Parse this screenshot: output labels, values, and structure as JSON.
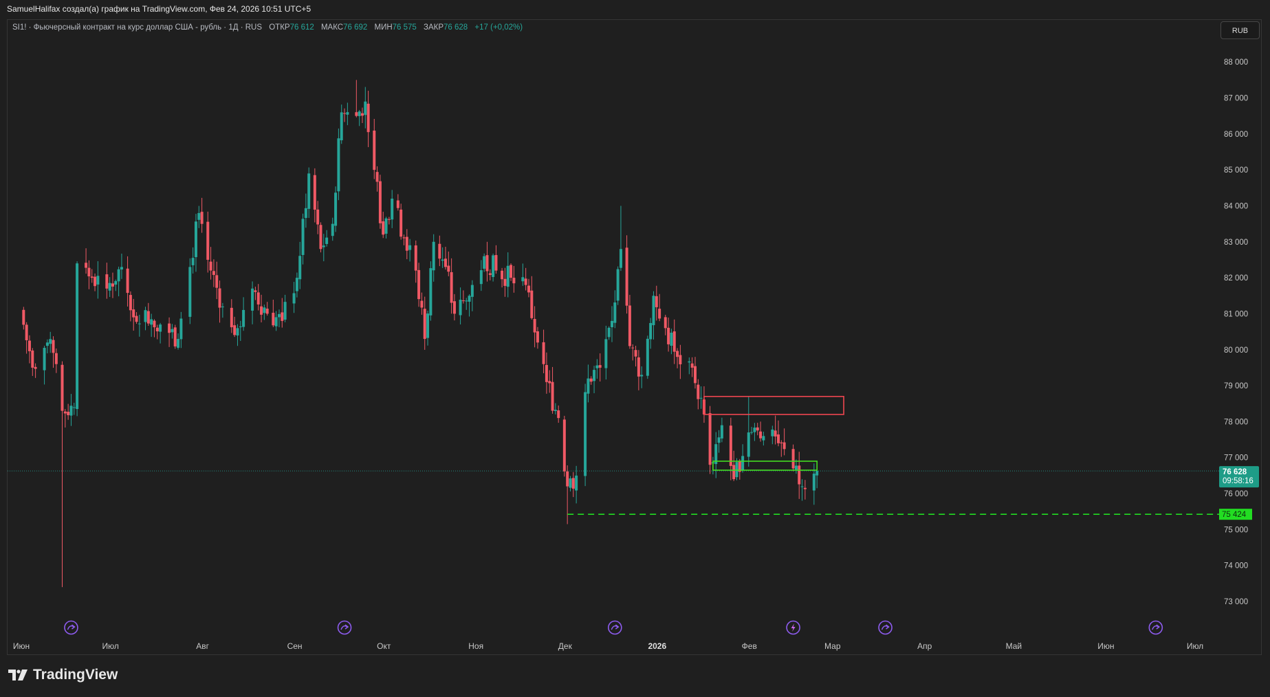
{
  "header": {
    "attribution": "SamuelHalifax создал(а) график на TradingView.com, Фев 24, 2026 10:51 UTC+5"
  },
  "legend": {
    "title": "SI1! · Фьючерсный контракт на курс доллар США - рубль · 1Д · RUS",
    "open_label": "ОТКР",
    "open_value": "76 612",
    "high_label": "МАКС",
    "high_value": "76 692",
    "low_label": "МИН",
    "low_value": "76 575",
    "close_label": "ЗАКР",
    "close_value": "76 628",
    "change": "+17 (+0,02%)"
  },
  "currency_button": "RUB",
  "price_badge": {
    "price": "76 628",
    "countdown": "09:58:16"
  },
  "level_badge": "75 424",
  "brand": "TradingView",
  "colors": {
    "up": "#26a69a",
    "down": "#f05965",
    "background": "#1f1f1f",
    "level_line": "#22dd22",
    "resistance_zone": "#f04650",
    "support_zone": "#44dd22",
    "event_marker": "#8e5cf0"
  },
  "chart_data": {
    "type": "candlestick",
    "y_range": [
      72400,
      88500
    ],
    "y_ticks": [
      "73 000",
      "74 000",
      "75 000",
      "76 000",
      "77 000",
      "78 000",
      "79 000",
      "80 000",
      "81 000",
      "82 000",
      "83 000",
      "84 000",
      "85 000",
      "86 000",
      "87 000",
      "88 000"
    ],
    "y_tick_values": [
      73000,
      74000,
      75000,
      76000,
      77000,
      78000,
      79000,
      80000,
      81000,
      82000,
      83000,
      84000,
      85000,
      86000,
      87000,
      88000
    ],
    "x_ticks": [
      {
        "label": "Июн",
        "date": "2025-06-01"
      },
      {
        "label": "Июл",
        "date": "2025-07-01"
      },
      {
        "label": "Авг",
        "date": "2025-08-01"
      },
      {
        "label": "Сен",
        "date": "2025-09-01"
      },
      {
        "label": "Окт",
        "date": "2025-10-01"
      },
      {
        "label": "Ноя",
        "date": "2025-11-01"
      },
      {
        "label": "Дек",
        "date": "2025-12-01"
      },
      {
        "label": "2026",
        "date": "2026-01-01"
      },
      {
        "label": "Фев",
        "date": "2026-02-01"
      },
      {
        "label": "Мар",
        "date": "2026-03-01"
      },
      {
        "label": "Апр",
        "date": "2026-04-01"
      },
      {
        "label": "Май",
        "date": "2026-05-01"
      },
      {
        "label": "Июн",
        "date": "2026-06-01"
      },
      {
        "label": "Июл",
        "date": "2026-07-01"
      }
    ],
    "bold_ticks": [
      "2026"
    ],
    "last_price": 76628,
    "horizontal_level": {
      "price": 75424,
      "from_date": "2025-12-02"
    },
    "zones": [
      {
        "kind": "resistance",
        "from_date": "2026-01-17",
        "to_date": "2026-03-05",
        "low": 78200,
        "high": 78700
      },
      {
        "kind": "support",
        "from_date": "2026-01-20",
        "to_date": "2026-02-24",
        "low": 76650,
        "high": 76900
      }
    ],
    "event_markers": [
      {
        "date": "2025-06-18",
        "kind": "split"
      },
      {
        "date": "2025-09-18",
        "kind": "split"
      },
      {
        "date": "2025-12-18",
        "kind": "split"
      },
      {
        "date": "2026-02-16",
        "kind": "flash"
      },
      {
        "date": "2026-03-19",
        "kind": "split"
      },
      {
        "date": "2026-06-18",
        "kind": "split"
      }
    ],
    "closes": [
      {
        "date": "2025-06-01",
        "close": 81100
      },
      {
        "date": "2025-06-05",
        "close": 79500
      },
      {
        "date": "2025-06-10",
        "close": 80200
      },
      {
        "date": "2025-06-13",
        "close": 79600
      },
      {
        "date": "2025-06-15",
        "close": 78300
      },
      {
        "date": "2025-06-19",
        "close": 78400
      },
      {
        "date": "2025-06-20",
        "close": 82400
      },
      {
        "date": "2025-06-25",
        "close": 82000
      },
      {
        "date": "2025-06-30",
        "close": 81700
      },
      {
        "date": "2025-07-05",
        "close": 82300
      },
      {
        "date": "2025-07-09",
        "close": 80900
      },
      {
        "date": "2025-07-13",
        "close": 81100
      },
      {
        "date": "2025-07-18",
        "close": 80700
      },
      {
        "date": "2025-07-24",
        "close": 80300
      },
      {
        "date": "2025-07-28",
        "close": 82300
      },
      {
        "date": "2025-07-31",
        "close": 83800
      },
      {
        "date": "2025-08-03",
        "close": 82500
      },
      {
        "date": "2025-08-08",
        "close": 81200
      },
      {
        "date": "2025-08-13",
        "close": 80600
      },
      {
        "date": "2025-08-18",
        "close": 81700
      },
      {
        "date": "2025-08-23",
        "close": 81000
      },
      {
        "date": "2025-08-28",
        "close": 80800
      },
      {
        "date": "2025-09-02",
        "close": 82000
      },
      {
        "date": "2025-09-06",
        "close": 84900
      },
      {
        "date": "2025-09-10",
        "close": 82800
      },
      {
        "date": "2025-09-14",
        "close": 83500
      },
      {
        "date": "2025-09-17",
        "close": 86600
      },
      {
        "date": "2025-09-22",
        "close": 86500
      },
      {
        "date": "2025-09-25",
        "close": 86900
      },
      {
        "date": "2025-09-28",
        "close": 85000
      },
      {
        "date": "2025-10-01",
        "close": 83200
      },
      {
        "date": "2025-10-04",
        "close": 84200
      },
      {
        "date": "2025-10-08",
        "close": 83100
      },
      {
        "date": "2025-10-12",
        "close": 82200
      },
      {
        "date": "2025-10-15",
        "close": 80300
      },
      {
        "date": "2025-10-18",
        "close": 83000
      },
      {
        "date": "2025-10-22",
        "close": 82300
      },
      {
        "date": "2025-10-25",
        "close": 81000
      },
      {
        "date": "2025-10-30",
        "close": 81500
      },
      {
        "date": "2025-11-04",
        "close": 82600
      },
      {
        "date": "2025-11-08",
        "close": 82200
      },
      {
        "date": "2025-11-13",
        "close": 82000
      },
      {
        "date": "2025-11-18",
        "close": 81800
      },
      {
        "date": "2025-11-22",
        "close": 80200
      },
      {
        "date": "2025-11-25",
        "close": 79100
      },
      {
        "date": "2025-11-29",
        "close": 78100
      },
      {
        "date": "2025-12-02",
        "close": 76200
      },
      {
        "date": "2025-12-05",
        "close": 76500
      },
      {
        "date": "2025-12-09",
        "close": 79200
      },
      {
        "date": "2025-12-13",
        "close": 79500
      },
      {
        "date": "2025-12-17",
        "close": 80800
      },
      {
        "date": "2025-12-20",
        "close": 82800
      },
      {
        "date": "2025-12-23",
        "close": 80100
      },
      {
        "date": "2025-12-27",
        "close": 79300
      },
      {
        "date": "2025-12-31",
        "close": 81500
      },
      {
        "date": "2026-01-04",
        "close": 80600
      },
      {
        "date": "2026-01-08",
        "close": 79800
      },
      {
        "date": "2026-01-13",
        "close": 79500
      },
      {
        "date": "2026-01-17",
        "close": 78200
      },
      {
        "date": "2026-01-19",
        "close": 76800
      },
      {
        "date": "2026-01-23",
        "close": 77900
      },
      {
        "date": "2026-01-27",
        "close": 76400
      },
      {
        "date": "2026-02-01",
        "close": 77700
      },
      {
        "date": "2026-02-06",
        "close": 77600
      },
      {
        "date": "2026-02-11",
        "close": 77400
      },
      {
        "date": "2026-02-16",
        "close": 76700
      },
      {
        "date": "2026-02-19",
        "close": 76200
      },
      {
        "date": "2026-02-24",
        "close": 76628
      }
    ]
  }
}
